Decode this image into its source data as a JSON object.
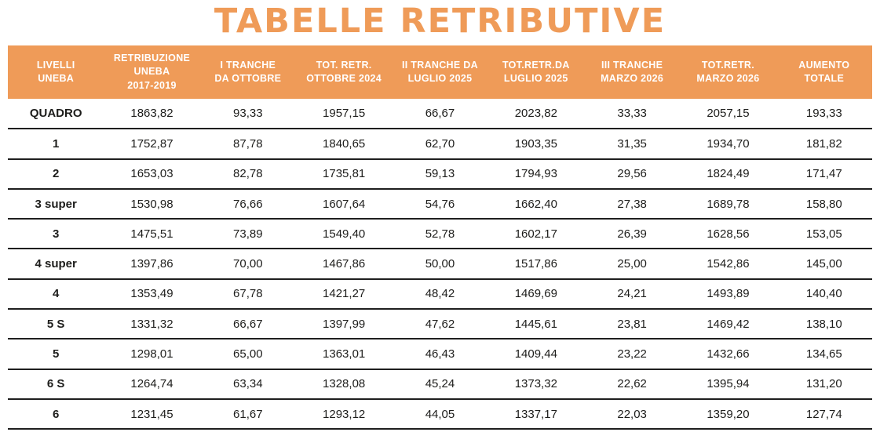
{
  "title": "TABELLE RETRIBUTIVE",
  "colors": {
    "accent_orange": "#EF9B58",
    "header_text": "#FFFFFF",
    "body_text": "#1D1D1B",
    "row_line": "#1F1F1F",
    "background": "#FFFFFF"
  },
  "table": {
    "columns": [
      "LIVELLI\nUNEBA",
      "RETRIBUZIONE\nUNEBA\n2017-2019",
      "I TRANCHE\nDA OTTOBRE",
      "TOT. RETR.\nOTTOBRE 2024",
      "II TRANCHE DA\nLUGLIO 2025",
      "TOT.RETR.DA\nLUGLIO 2025",
      "III TRANCHE\nMARZO 2026",
      "TOT.RETR.\nMARZO 2026",
      "AUMENTO\nTOTALE"
    ],
    "rows": [
      {
        "level": "QUADRO",
        "values": [
          "1863,82",
          "93,33",
          "1957,15",
          "66,67",
          "2023,82",
          "33,33",
          "2057,15",
          "193,33"
        ]
      },
      {
        "level": "1",
        "values": [
          "1752,87",
          "87,78",
          "1840,65",
          "62,70",
          "1903,35",
          "31,35",
          "1934,70",
          "181,82"
        ]
      },
      {
        "level": "2",
        "values": [
          "1653,03",
          "82,78",
          "1735,81",
          "59,13",
          "1794,93",
          "29,56",
          "1824,49",
          "171,47"
        ]
      },
      {
        "level": "3 super",
        "values": [
          "1530,98",
          "76,66",
          "1607,64",
          "54,76",
          "1662,40",
          "27,38",
          "1689,78",
          "158,80"
        ]
      },
      {
        "level": "3",
        "values": [
          "1475,51",
          "73,89",
          "1549,40",
          "52,78",
          "1602,17",
          "26,39",
          "1628,56",
          "153,05"
        ]
      },
      {
        "level": "4 super",
        "values": [
          "1397,86",
          "70,00",
          "1467,86",
          "50,00",
          "1517,86",
          "25,00",
          "1542,86",
          "145,00"
        ]
      },
      {
        "level": "4",
        "values": [
          "1353,49",
          "67,78",
          "1421,27",
          "48,42",
          "1469,69",
          "24,21",
          "1493,89",
          "140,40"
        ]
      },
      {
        "level": "5 S",
        "values": [
          "1331,32",
          "66,67",
          "1397,99",
          "47,62",
          "1445,61",
          "23,81",
          "1469,42",
          "138,10"
        ]
      },
      {
        "level": "5",
        "values": [
          "1298,01",
          "65,00",
          "1363,01",
          "46,43",
          "1409,44",
          "23,22",
          "1432,66",
          "134,65"
        ]
      },
      {
        "level": "6 S",
        "values": [
          "1264,74",
          "63,34",
          "1328,08",
          "45,24",
          "1373,32",
          "22,62",
          "1395,94",
          "131,20"
        ]
      },
      {
        "level": "6",
        "values": [
          "1231,45",
          "61,67",
          "1293,12",
          "44,05",
          "1337,17",
          "22,03",
          "1359,20",
          "127,74"
        ]
      }
    ]
  },
  "chart_data": {
    "type": "table",
    "title": "TABELLE RETRIBUTIVE",
    "columns": [
      "LIVELLI UNEBA",
      "RETRIBUZIONE UNEBA 2017-2019",
      "I TRANCHE DA OTTOBRE",
      "TOT. RETR. OTTOBRE 2024",
      "II TRANCHE DA LUGLIO 2025",
      "TOT.RETR.DA LUGLIO 2025",
      "III TRANCHE MARZO 2026",
      "TOT.RETR. MARZO 2026",
      "AUMENTO TOTALE"
    ],
    "rows": [
      [
        "QUADRO",
        1863.82,
        93.33,
        1957.15,
        66.67,
        2023.82,
        33.33,
        2057.15,
        193.33
      ],
      [
        "1",
        1752.87,
        87.78,
        1840.65,
        62.7,
        1903.35,
        31.35,
        1934.7,
        181.82
      ],
      [
        "2",
        1653.03,
        82.78,
        1735.81,
        59.13,
        1794.93,
        29.56,
        1824.49,
        171.47
      ],
      [
        "3 super",
        1530.98,
        76.66,
        1607.64,
        54.76,
        1662.4,
        27.38,
        1689.78,
        158.8
      ],
      [
        "3",
        1475.51,
        73.89,
        1549.4,
        52.78,
        1602.17,
        26.39,
        1628.56,
        153.05
      ],
      [
        "4 super",
        1397.86,
        70.0,
        1467.86,
        50.0,
        1517.86,
        25.0,
        1542.86,
        145.0
      ],
      [
        "4",
        1353.49,
        67.78,
        1421.27,
        48.42,
        1469.69,
        24.21,
        1493.89,
        140.4
      ],
      [
        "5 S",
        1331.32,
        66.67,
        1397.99,
        47.62,
        1445.61,
        23.81,
        1469.42,
        138.1
      ],
      [
        "5",
        1298.01,
        65.0,
        1363.01,
        46.43,
        1409.44,
        23.22,
        1432.66,
        134.65
      ],
      [
        "6 S",
        1264.74,
        63.34,
        1328.08,
        45.24,
        1373.32,
        22.62,
        1395.94,
        131.2
      ],
      [
        "6",
        1231.45,
        61.67,
        1293.12,
        44.05,
        1337.17,
        22.03,
        1359.2,
        127.74
      ]
    ],
    "decimal_separator": ",",
    "notes": "Bold first column lists UNEBA contract levels; other columns are euro amounts."
  }
}
